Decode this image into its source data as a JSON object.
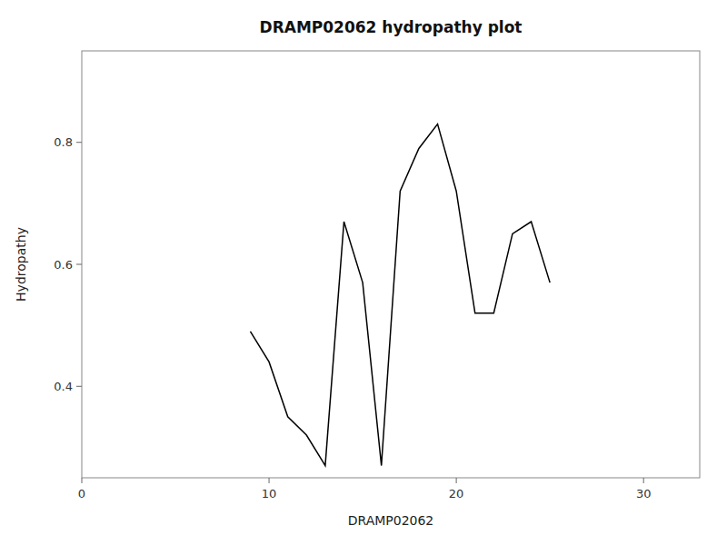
{
  "chart_data": {
    "type": "line",
    "title": "DRAMP02062 hydropathy plot",
    "xlabel": "DRAMP02062",
    "ylabel": "Hydropathy",
    "x": [
      9,
      10,
      11,
      12,
      13,
      14,
      15,
      16,
      17,
      18,
      19,
      20,
      21,
      22,
      23,
      24,
      25
    ],
    "values": [
      0.49,
      0.44,
      0.35,
      0.32,
      0.27,
      0.67,
      0.57,
      0.27,
      0.72,
      0.79,
      0.83,
      0.72,
      0.52,
      0.52,
      0.65,
      0.67,
      0.57
    ],
    "color": "#000000",
    "xlim": [
      0,
      33
    ],
    "ylim": [
      0.25,
      0.95
    ],
    "xticks": [
      0,
      10,
      20,
      30
    ],
    "yticks": [
      0.4,
      0.6,
      0.8
    ],
    "grid": false
  }
}
